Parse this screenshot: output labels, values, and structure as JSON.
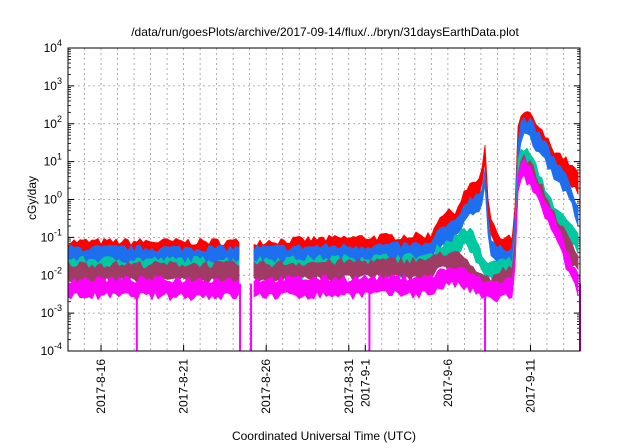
{
  "chart_data": {
    "type": "line",
    "title": "/data/run/goesPlots/archive/2017-09-14/flux/../bryn/31daysEarthData.plot",
    "xlabel": "Coordinated Universal Time (UTC)",
    "ylabel": "cGy/day",
    "yscale": "log",
    "ylim": [
      0.0001,
      10000
    ],
    "xlim": [
      "2017-08-14",
      "2017-09-14"
    ],
    "grid": true,
    "legend": "none",
    "y_ticks": [
      {
        "base": "10",
        "exp": "-4"
      },
      {
        "base": "10",
        "exp": "-3"
      },
      {
        "base": "10",
        "exp": "-2"
      },
      {
        "base": "10",
        "exp": "-1"
      },
      {
        "base": "10",
        "exp": "0"
      },
      {
        "base": "10",
        "exp": "1"
      },
      {
        "base": "10",
        "exp": "2"
      },
      {
        "base": "10",
        "exp": "3"
      },
      {
        "base": "10",
        "exp": "4"
      }
    ],
    "x_ticks": [
      {
        "date": "2017-08-16",
        "label": "2017-8-16"
      },
      {
        "date": "2017-08-21",
        "label": "2017-8-21"
      },
      {
        "date": "2017-08-26",
        "label": "2017-8-26"
      },
      {
        "date": "2017-08-31",
        "label": "2017-8-31"
      },
      {
        "date": "2017-09-01",
        "label": "2017-9-1"
      },
      {
        "date": "2017-09-06",
        "label": "2017-9-6"
      },
      {
        "date": "2017-09-11",
        "label": "2017-9-11"
      }
    ],
    "gaps": [
      [
        "2017-08-24 12:00",
        "2017-08-25 02:00"
      ]
    ],
    "dropouts": [
      "2017-08-18 04:00",
      "2017-08-24 10:00",
      "2017-08-25 02:00",
      "2017-09-01 06:00",
      "2017-09-08 06:00",
      "2017-09-14 00:00"
    ],
    "series": [
      {
        "color": "#ff0000",
        "x": [
          "2017-08-14",
          "2017-08-24 12:00",
          "2017-08-25 02:00",
          "2017-09-05",
          "2017-09-05 12:00",
          "2017-09-06",
          "2017-09-06 12:00",
          "2017-09-07",
          "2017-09-07 12:00",
          "2017-09-08",
          "2017-09-08 06:00",
          "2017-09-08 12:00",
          "2017-09-08 18:00",
          "2017-09-09",
          "2017-09-09 12:00",
          "2017-09-10",
          "2017-09-10 06:00",
          "2017-09-10 12:00",
          "2017-09-11",
          "2017-09-11 12:00",
          "2017-09-12",
          "2017-09-12 12:00",
          "2017-09-13",
          "2017-09-13 12:00",
          "2017-09-14"
        ],
        "y": [
          0.06,
          0.06,
          0.06,
          0.09,
          0.3,
          0.35,
          0.4,
          1.2,
          2.0,
          3.0,
          20,
          0.2,
          0.2,
          0.08,
          0.07,
          0.08,
          60,
          150,
          130,
          60,
          30,
          15,
          10,
          6,
          3
        ]
      },
      {
        "color": "#1e6ef0",
        "x": [
          "2017-08-14",
          "2017-08-24 12:00",
          "2017-08-25 02:00",
          "2017-09-05",
          "2017-09-05 12:00",
          "2017-09-06",
          "2017-09-06 12:00",
          "2017-09-07",
          "2017-09-07 12:00",
          "2017-09-08",
          "2017-09-08 06:00",
          "2017-09-08 12:00",
          "2017-09-08 18:00",
          "2017-09-09",
          "2017-09-09 12:00",
          "2017-09-10",
          "2017-09-10 06:00",
          "2017-09-10 12:00",
          "2017-09-11",
          "2017-09-11 12:00",
          "2017-09-12",
          "2017-09-12 12:00",
          "2017-09-13",
          "2017-09-13 12:00",
          "2017-09-14"
        ],
        "y": [
          0.04,
          0.04,
          0.04,
          0.05,
          0.13,
          0.15,
          0.2,
          0.6,
          0.9,
          1.2,
          5,
          0.08,
          0.05,
          0.04,
          0.04,
          0.05,
          30,
          110,
          90,
          40,
          20,
          8,
          4,
          1.5,
          0.3
        ]
      },
      {
        "color": "#00c8a0",
        "x": [
          "2017-08-14",
          "2017-08-24 12:00",
          "2017-08-25 02:00",
          "2017-09-05",
          "2017-09-05 12:00",
          "2017-09-06",
          "2017-09-06 12:00",
          "2017-09-07",
          "2017-09-07 12:00",
          "2017-09-08",
          "2017-09-08 06:00",
          "2017-09-08 12:00",
          "2017-09-08 18:00",
          "2017-09-09",
          "2017-09-09 12:00",
          "2017-09-10",
          "2017-09-10 06:00",
          "2017-09-10 12:00",
          "2017-09-11",
          "2017-09-11 12:00",
          "2017-09-12",
          "2017-09-12 12:00",
          "2017-09-13",
          "2017-09-13 12:00",
          "2017-09-14"
        ],
        "y": [
          0.02,
          0.02,
          0.02,
          0.025,
          0.05,
          0.06,
          0.08,
          0.15,
          0.1,
          0.03,
          0.02,
          0.015,
          0.015,
          0.02,
          0.02,
          0.02,
          8,
          20,
          12,
          4,
          1.2,
          0.5,
          0.25,
          0.15,
          0.08
        ]
      },
      {
        "color": "#a03c64",
        "x": [
          "2017-08-14",
          "2017-08-24 12:00",
          "2017-08-25 02:00",
          "2017-09-05",
          "2017-09-05 12:00",
          "2017-09-06",
          "2017-09-06 12:00",
          "2017-09-07",
          "2017-09-07 12:00",
          "2017-09-08",
          "2017-09-08 06:00",
          "2017-09-08 12:00",
          "2017-09-08 18:00",
          "2017-09-09",
          "2017-09-09 12:00",
          "2017-09-10",
          "2017-09-10 06:00",
          "2017-09-10 12:00",
          "2017-09-11",
          "2017-09-11 12:00",
          "2017-09-12",
          "2017-09-12 12:00",
          "2017-09-13",
          "2017-09-13 12:00",
          "2017-09-14"
        ],
        "y": [
          0.015,
          0.015,
          0.015,
          0.02,
          0.03,
          0.03,
          0.03,
          0.02,
          0.012,
          0.008,
          0.007,
          0.006,
          0.006,
          0.01,
          0.012,
          0.015,
          4,
          12,
          7,
          2.5,
          0.8,
          0.3,
          0.12,
          0.05,
          0.02
        ]
      },
      {
        "color": "#ff00ff",
        "x": [
          "2017-08-14",
          "2017-08-24 12:00",
          "2017-08-25 02:00",
          "2017-09-05",
          "2017-09-05 12:00",
          "2017-09-06",
          "2017-09-06 12:00",
          "2017-09-07",
          "2017-09-07 12:00",
          "2017-09-08",
          "2017-09-08 06:00",
          "2017-09-08 12:00",
          "2017-09-08 18:00",
          "2017-09-09",
          "2017-09-09 12:00",
          "2017-09-10",
          "2017-09-10 06:00",
          "2017-09-10 12:00",
          "2017-09-11",
          "2017-09-11 12:00",
          "2017-09-12",
          "2017-09-12 12:00",
          "2017-09-13",
          "2017-09-13 12:00",
          "2017-09-14"
        ],
        "y": [
          0.006,
          0.006,
          0.006,
          0.007,
          0.01,
          0.012,
          0.012,
          0.01,
          0.008,
          0.006,
          0.005,
          0.005,
          0.005,
          0.005,
          0.006,
          0.006,
          3,
          9,
          5,
          1.8,
          0.6,
          0.2,
          0.06,
          0.015,
          0.006
        ]
      }
    ]
  }
}
